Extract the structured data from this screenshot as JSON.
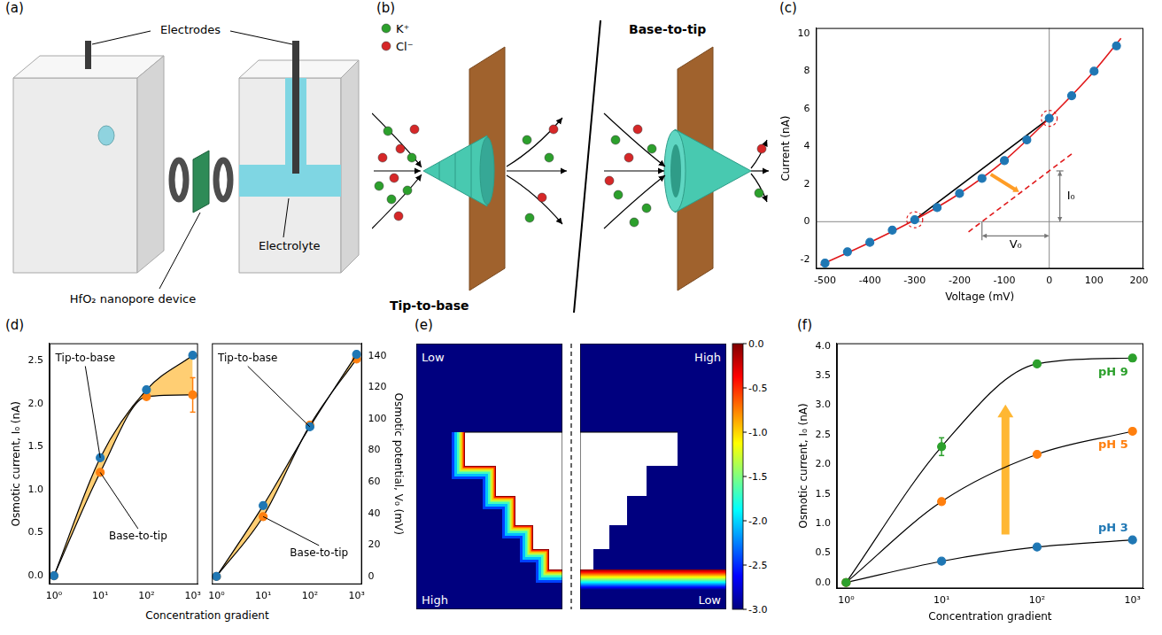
{
  "panel_a": {
    "panel": "(a)",
    "labels": {
      "electrodes": "Electrodes",
      "device": "HfO₂ nanopore device",
      "electrolyte": "Electrolyte"
    }
  },
  "panel_b": {
    "panel": "(b)",
    "ions": [
      {
        "name": "K⁺",
        "color": "#2ca02c"
      },
      {
        "name": "Cl⁻",
        "color": "#d62728"
      }
    ],
    "modes": [
      "Tip-to-base",
      "Base-to-tip"
    ]
  },
  "panel_e": {
    "panel": "(e)",
    "maps": [
      {
        "top": "Low",
        "bottom": "High"
      },
      {
        "top": "High",
        "bottom": "Low"
      }
    ],
    "colorbar": {
      "range": [
        -3,
        0
      ],
      "ticks": [
        {
          "value": 0,
          "label": "0.0"
        },
        -0.5,
        {
          "value": -1,
          "label": "-1.0"
        },
        -1.5,
        {
          "value": -2,
          "label": "-2.0"
        },
        -2.5,
        {
          "value": -3,
          "label": "-3.0"
        }
      ]
    }
  },
  "chart_data": [
    {
      "panel": "(c)",
      "type": "scatter",
      "x_label": "Voltage (mV)",
      "y_label": "Current (nA)",
      "xlim": [
        -520,
        210
      ],
      "xticks": [
        -500,
        -400,
        -300,
        -200,
        -100,
        0,
        100,
        200
      ],
      "ylim": [
        -2.5,
        10.3
      ],
      "yticks": [
        -2,
        0,
        2,
        4,
        6,
        8,
        10
      ],
      "grid": false,
      "series": [
        {
          "color": "#1f77b4",
          "marker": "circle",
          "line_style": "none",
          "x": [
            -500,
            -450,
            -400,
            -350,
            -300,
            -250,
            -200,
            -150,
            -100,
            -50,
            0,
            50,
            100,
            150
          ],
          "values": [
            -2.2,
            -1.6,
            -1.1,
            -0.45,
            0.1,
            0.75,
            1.5,
            2.3,
            3.25,
            4.35,
            5.5,
            6.7,
            8.0,
            9.35
          ]
        },
        {
          "color": "#e0191b",
          "marker": "none",
          "line_style": "solid",
          "x": [
            -510,
            -400,
            -300,
            -200,
            -100,
            0,
            100,
            160
          ],
          "values": [
            -2.3,
            -1.1,
            0.1,
            1.5,
            3.25,
            5.5,
            8.0,
            9.75
          ]
        },
        {
          "color": "#000000",
          "marker": "none",
          "line_style": "solid",
          "x": [
            -300,
            0
          ],
          "values": [
            0.1,
            5.5
          ]
        },
        {
          "color": "#e0191b",
          "marker": "none",
          "line_style": "dashed",
          "x": [
            -180,
            50
          ],
          "values": [
            -0.54,
            3.6
          ]
        }
      ],
      "annotations": [
        {
          "text": "V₀",
          "x": [
            -150,
            0
          ]
        },
        {
          "text": "I₀",
          "y": [
            0,
            2.7
          ]
        }
      ]
    },
    {
      "panel": "(d)",
      "type": "line",
      "log": "x",
      "x_label": "Concentration gradient",
      "y_label": "Osmotic current, I₀ (nA)",
      "x": [
        1,
        10,
        100,
        1000
      ],
      "xlim": [
        0.8,
        1300
      ],
      "xticks": [
        {
          "value": 1,
          "label": "10⁰"
        },
        {
          "value": 10,
          "label": "10¹"
        },
        {
          "value": 100,
          "label": "10²"
        },
        {
          "value": 1000,
          "label": "10³"
        }
      ],
      "ylim": [
        -0.1,
        2.7
      ],
      "yticks": [
        {
          "value": 0,
          "label": "0.0"
        },
        0.5,
        {
          "value": 1,
          "label": "1.0"
        },
        1.5,
        {
          "value": 2,
          "label": "2.0"
        },
        2.5
      ],
      "grid": false,
      "series": [
        {
          "name": "Tip-to-base",
          "color": "#1f77b4",
          "marker": "circle",
          "line_style": "solid",
          "values": [
            0,
            1.37,
            2.16,
            2.56
          ]
        },
        {
          "name": "Base-to-tip",
          "color": "#ff7f0e",
          "marker": "circle",
          "line_style": "solid",
          "values": [
            0,
            1.2,
            2.08,
            2.1
          ],
          "errors": [
            null,
            null,
            null,
            0.2
          ]
        }
      ]
    },
    {
      "type": "line",
      "log": "x",
      "y_label": "Osmotic potential, V₀ (mV)",
      "x": [
        1,
        10,
        100,
        1000
      ],
      "xlim": [
        0.8,
        1300
      ],
      "xticks": [
        {
          "value": 1,
          "label": "10⁰"
        },
        {
          "value": 10,
          "label": "10¹"
        },
        {
          "value": 100,
          "label": "10²"
        },
        {
          "value": 1000,
          "label": "10³"
        }
      ],
      "ylim": [
        -5,
        148
      ],
      "yticks": [
        0,
        20,
        40,
        60,
        80,
        100,
        120,
        140
      ],
      "grid": false,
      "series": [
        {
          "name": "Tip-to-base",
          "color": "#1f77b4",
          "marker": "circle",
          "line_style": "solid",
          "values": [
            0,
            45,
            95,
            141
          ]
        },
        {
          "name": "Base-to-tip",
          "color": "#ff7f0e",
          "marker": "circle",
          "line_style": "solid",
          "values": [
            0,
            38,
            96,
            138
          ]
        }
      ]
    },
    {
      "panel": "(f)",
      "type": "line",
      "log": "x",
      "x_label": "Concentration gradient",
      "y_label": "Osmotic current, I₀ (nA)",
      "x": [
        1,
        10,
        100,
        1000
      ],
      "xlim": [
        0.8,
        1300
      ],
      "xticks": [
        {
          "value": 1,
          "label": "10⁰"
        },
        {
          "value": 10,
          "label": "10¹"
        },
        {
          "value": 100,
          "label": "10²"
        },
        {
          "value": 1000,
          "label": "10³"
        }
      ],
      "ylim": [
        -0.1,
        4.05
      ],
      "yticks": [
        {
          "value": 0,
          "label": "0.0"
        },
        0.5,
        {
          "value": 1,
          "label": "1.0"
        },
        1.5,
        {
          "value": 2,
          "label": "2.0"
        },
        2.5,
        {
          "value": 3,
          "label": "3.0"
        },
        3.5,
        {
          "value": 4,
          "label": "4.0"
        }
      ],
      "grid": false,
      "series": [
        {
          "name": "pH 9",
          "color": "#2ca02c",
          "marker": "circle",
          "line_style": "solid",
          "values": [
            0,
            2.3,
            3.7,
            3.8
          ],
          "errors": [
            null,
            0.15,
            null,
            0.05
          ]
        },
        {
          "name": "pH 5",
          "color": "#ff7f0e",
          "marker": "circle",
          "line_style": "solid",
          "values": [
            0,
            1.37,
            2.17,
            2.56
          ]
        },
        {
          "name": "pH 3",
          "color": "#1f77b4",
          "marker": "circle",
          "line_style": "solid",
          "values": [
            0,
            0.36,
            0.6,
            0.72
          ]
        }
      ]
    }
  ]
}
